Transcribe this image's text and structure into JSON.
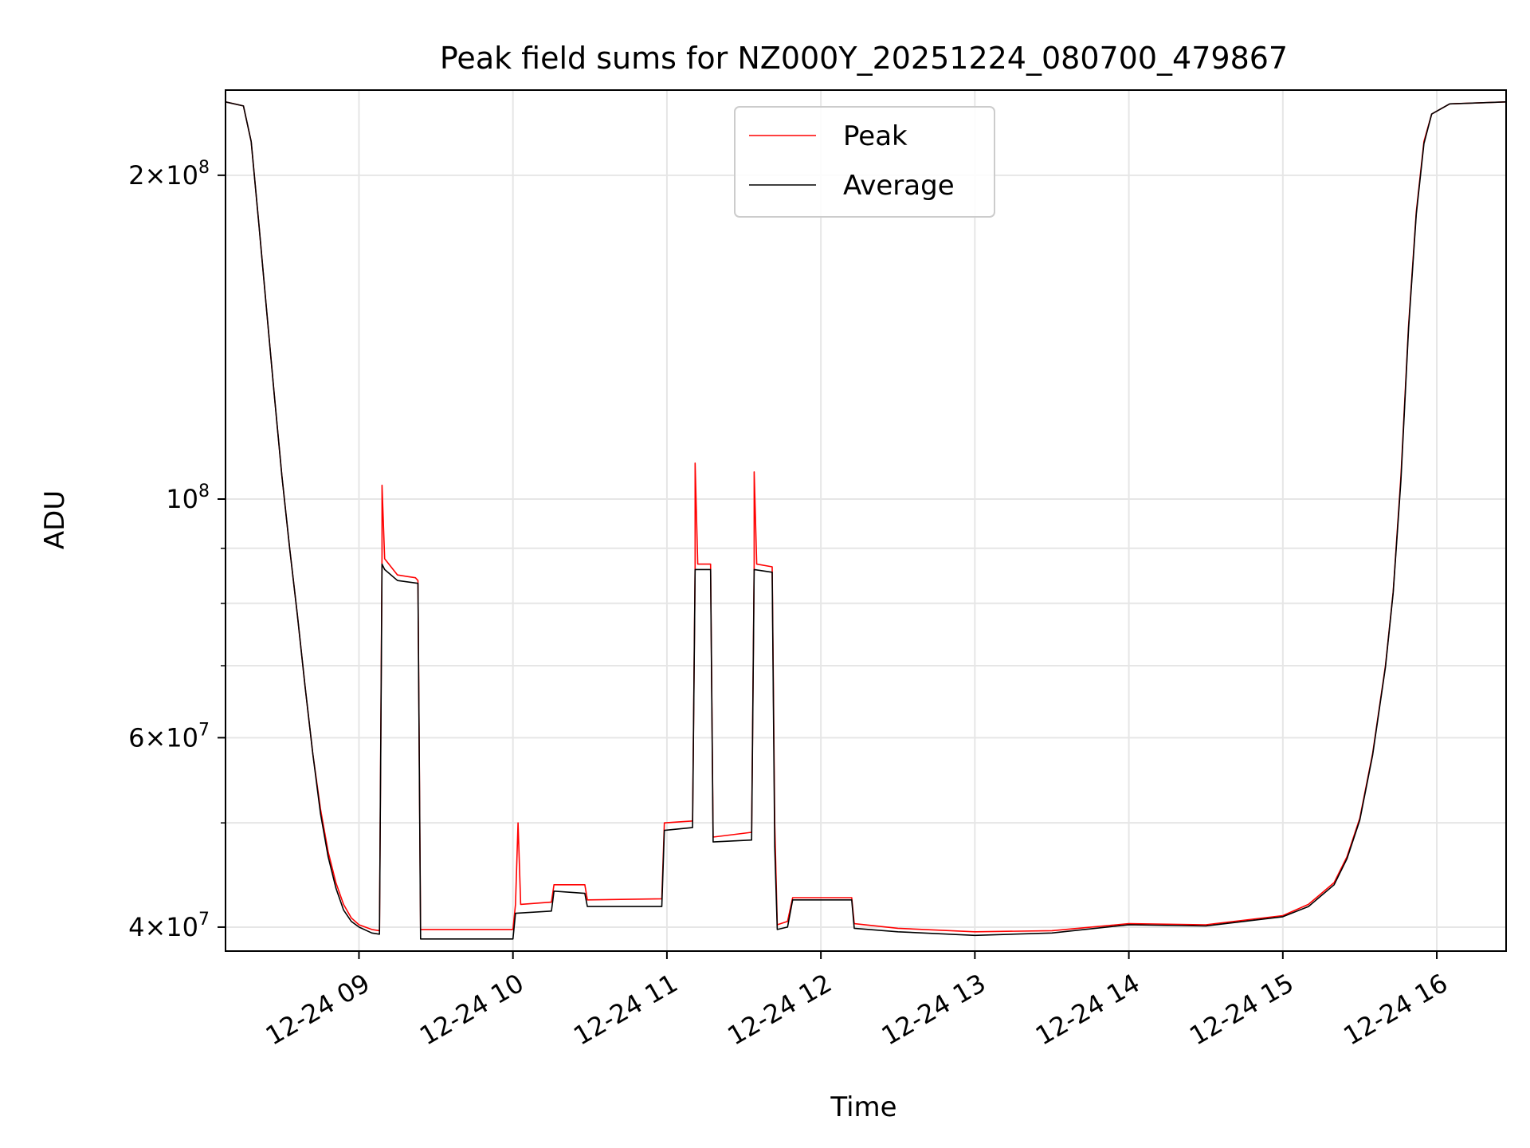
{
  "chart_data": {
    "type": "line",
    "title": "Peak field sums for NZ000Y_20251224_080700_479867",
    "xlabel": "Time",
    "ylabel": "ADU",
    "y_scale": "log",
    "ylim": [
      38000000,
      240000000
    ],
    "xlim": [
      "12-24 08:08",
      "12-24 16:27"
    ],
    "grid": true,
    "legend_position": "top-center",
    "x_ticks": [
      {
        "value": "12-24 09:00",
        "label": "12-24 09"
      },
      {
        "value": "12-24 10:00",
        "label": "12-24 10"
      },
      {
        "value": "12-24 11:00",
        "label": "12-24 11"
      },
      {
        "value": "12-24 12:00",
        "label": "12-24 12"
      },
      {
        "value": "12-24 13:00",
        "label": "12-24 13"
      },
      {
        "value": "12-24 14:00",
        "label": "12-24 14"
      },
      {
        "value": "12-24 15:00",
        "label": "12-24 15"
      },
      {
        "value": "12-24 16:00",
        "label": "12-24 16"
      }
    ],
    "y_major_ticks": [
      {
        "value": 40000000,
        "mantissa": "4",
        "exponent": "7"
      },
      {
        "value": 60000000,
        "mantissa": "6",
        "exponent": "7"
      },
      {
        "value": 100000000,
        "mantissa": "",
        "exponent": "8"
      },
      {
        "value": 200000000,
        "mantissa": "2",
        "exponent": "8"
      }
    ],
    "y_minor_ticks": [
      50000000,
      70000000,
      80000000,
      90000000
    ],
    "series": [
      {
        "name": "Peak",
        "color": "#ff0000",
        "points": [
          [
            "12-24 08:08",
            234000000
          ],
          [
            "12-24 08:15",
            232000000
          ],
          [
            "12-24 08:18",
            215000000
          ],
          [
            "12-24 08:21",
            180000000
          ],
          [
            "12-24 08:24",
            150000000
          ],
          [
            "12-24 08:27",
            125000000
          ],
          [
            "12-24 08:30",
            105000000
          ],
          [
            "12-24 08:33",
            90000000
          ],
          [
            "12-24 08:36",
            78000000
          ],
          [
            "12-24 08:39",
            67000000
          ],
          [
            "12-24 08:42",
            58000000
          ],
          [
            "12-24 08:45",
            51500000
          ],
          [
            "12-24 08:48",
            47000000
          ],
          [
            "12-24 08:51",
            44000000
          ],
          [
            "12-24 08:54",
            42000000
          ],
          [
            "12-24 08:57",
            40800000
          ],
          [
            "12-24 09:00",
            40200000
          ],
          [
            "12-24 09:05",
            39800000
          ],
          [
            "12-24 09:08",
            39700000
          ],
          [
            "12-24 09:09",
            89000000
          ],
          [
            "12-24 09:09",
            103000000
          ],
          [
            "12-24 09:10",
            88000000
          ],
          [
            "12-24 09:15",
            85000000
          ],
          [
            "12-24 09:22",
            84500000
          ],
          [
            "12-24 09:23",
            84000000
          ],
          [
            "12-24 09:24",
            39800000
          ],
          [
            "12-24 09:40",
            39800000
          ],
          [
            "12-24 10:00",
            39800000
          ],
          [
            "12-24 10:01",
            42000000
          ],
          [
            "12-24 10:02",
            50000000
          ],
          [
            "12-24 10:03",
            42000000
          ],
          [
            "12-24 10:15",
            42200000
          ],
          [
            "12-24 10:16",
            43800000
          ],
          [
            "12-24 10:28",
            43800000
          ],
          [
            "12-24 10:29",
            42400000
          ],
          [
            "12-24 10:58",
            42500000
          ],
          [
            "12-24 10:59",
            50000000
          ],
          [
            "12-24 11:10",
            50200000
          ],
          [
            "12-24 11:11",
            86500000
          ],
          [
            "12-24 11:11",
            108000000
          ],
          [
            "12-24 11:12",
            87000000
          ],
          [
            "12-24 11:17",
            87000000
          ],
          [
            "12-24 11:18",
            48500000
          ],
          [
            "12-24 11:33",
            49000000
          ],
          [
            "12-24 11:34",
            87000000
          ],
          [
            "12-24 11:34",
            106000000
          ],
          [
            "12-24 11:35",
            87000000
          ],
          [
            "12-24 11:41",
            86500000
          ],
          [
            "12-24 11:42",
            50000000
          ],
          [
            "12-24 11:43",
            40200000
          ],
          [
            "12-24 11:47",
            40500000
          ],
          [
            "12-24 11:49",
            42600000
          ],
          [
            "12-24 12:12",
            42600000
          ],
          [
            "12-24 12:13",
            40300000
          ],
          [
            "12-24 12:30",
            39900000
          ],
          [
            "12-24 13:00",
            39600000
          ],
          [
            "12-24 13:30",
            39700000
          ],
          [
            "12-24 14:00",
            40300000
          ],
          [
            "12-24 14:30",
            40200000
          ],
          [
            "12-24 15:00",
            41000000
          ],
          [
            "12-24 15:10",
            42000000
          ],
          [
            "12-24 15:20",
            44000000
          ],
          [
            "12-24 15:25",
            46500000
          ],
          [
            "12-24 15:30",
            50500000
          ],
          [
            "12-24 15:35",
            58000000
          ],
          [
            "12-24 15:40",
            70000000
          ],
          [
            "12-24 15:43",
            82000000
          ],
          [
            "12-24 15:46",
            105000000
          ],
          [
            "12-24 15:49",
            145000000
          ],
          [
            "12-24 15:52",
            185000000
          ],
          [
            "12-24 15:55",
            215000000
          ],
          [
            "12-24 15:58",
            228000000
          ],
          [
            "12-24 16:05",
            233000000
          ],
          [
            "12-24 16:27",
            234000000
          ]
        ]
      },
      {
        "name": "Average",
        "color": "#000000",
        "points": [
          [
            "12-24 08:08",
            234000000
          ],
          [
            "12-24 08:15",
            232000000
          ],
          [
            "12-24 08:18",
            215000000
          ],
          [
            "12-24 08:21",
            180000000
          ],
          [
            "12-24 08:24",
            150000000
          ],
          [
            "12-24 08:27",
            125000000
          ],
          [
            "12-24 08:30",
            105000000
          ],
          [
            "12-24 08:33",
            90000000
          ],
          [
            "12-24 08:36",
            78000000
          ],
          [
            "12-24 08:39",
            67000000
          ],
          [
            "12-24 08:42",
            58000000
          ],
          [
            "12-24 08:45",
            51000000
          ],
          [
            "12-24 08:48",
            46500000
          ],
          [
            "12-24 08:51",
            43500000
          ],
          [
            "12-24 08:54",
            41500000
          ],
          [
            "12-24 08:57",
            40500000
          ],
          [
            "12-24 09:00",
            40000000
          ],
          [
            "12-24 09:05",
            39500000
          ],
          [
            "12-24 09:08",
            39400000
          ],
          [
            "12-24 09:09",
            87000000
          ],
          [
            "12-24 09:10",
            86000000
          ],
          [
            "12-24 09:15",
            84000000
          ],
          [
            "12-24 09:23",
            83500000
          ],
          [
            "12-24 09:24",
            39000000
          ],
          [
            "12-24 10:00",
            39000000
          ],
          [
            "12-24 10:01",
            41200000
          ],
          [
            "12-24 10:15",
            41400000
          ],
          [
            "12-24 10:16",
            43200000
          ],
          [
            "12-24 10:28",
            43000000
          ],
          [
            "12-24 10:29",
            41800000
          ],
          [
            "12-24 10:58",
            41800000
          ],
          [
            "12-24 10:59",
            49200000
          ],
          [
            "12-24 11:10",
            49500000
          ],
          [
            "12-24 11:11",
            86000000
          ],
          [
            "12-24 11:17",
            86000000
          ],
          [
            "12-24 11:18",
            48000000
          ],
          [
            "12-24 11:33",
            48200000
          ],
          [
            "12-24 11:34",
            86000000
          ],
          [
            "12-24 11:41",
            85500000
          ],
          [
            "12-24 11:42",
            47500000
          ],
          [
            "12-24 11:43",
            39800000
          ],
          [
            "12-24 11:47",
            40000000
          ],
          [
            "12-24 11:49",
            42400000
          ],
          [
            "12-24 12:12",
            42400000
          ],
          [
            "12-24 12:13",
            39900000
          ],
          [
            "12-24 12:30",
            39600000
          ],
          [
            "12-24 13:00",
            39300000
          ],
          [
            "12-24 13:30",
            39500000
          ],
          [
            "12-24 14:00",
            40200000
          ],
          [
            "12-24 14:30",
            40100000
          ],
          [
            "12-24 15:00",
            40900000
          ],
          [
            "12-24 15:10",
            41800000
          ],
          [
            "12-24 15:20",
            43800000
          ],
          [
            "12-24 15:25",
            46300000
          ],
          [
            "12-24 15:30",
            50300000
          ],
          [
            "12-24 15:35",
            57800000
          ],
          [
            "12-24 15:40",
            69800000
          ],
          [
            "12-24 15:43",
            81800000
          ],
          [
            "12-24 15:46",
            104000000
          ],
          [
            "12-24 15:49",
            144000000
          ],
          [
            "12-24 15:52",
            184000000
          ],
          [
            "12-24 15:55",
            214000000
          ],
          [
            "12-24 15:58",
            228000000
          ],
          [
            "12-24 16:05",
            233000000
          ],
          [
            "12-24 16:27",
            234000000
          ]
        ]
      }
    ]
  }
}
